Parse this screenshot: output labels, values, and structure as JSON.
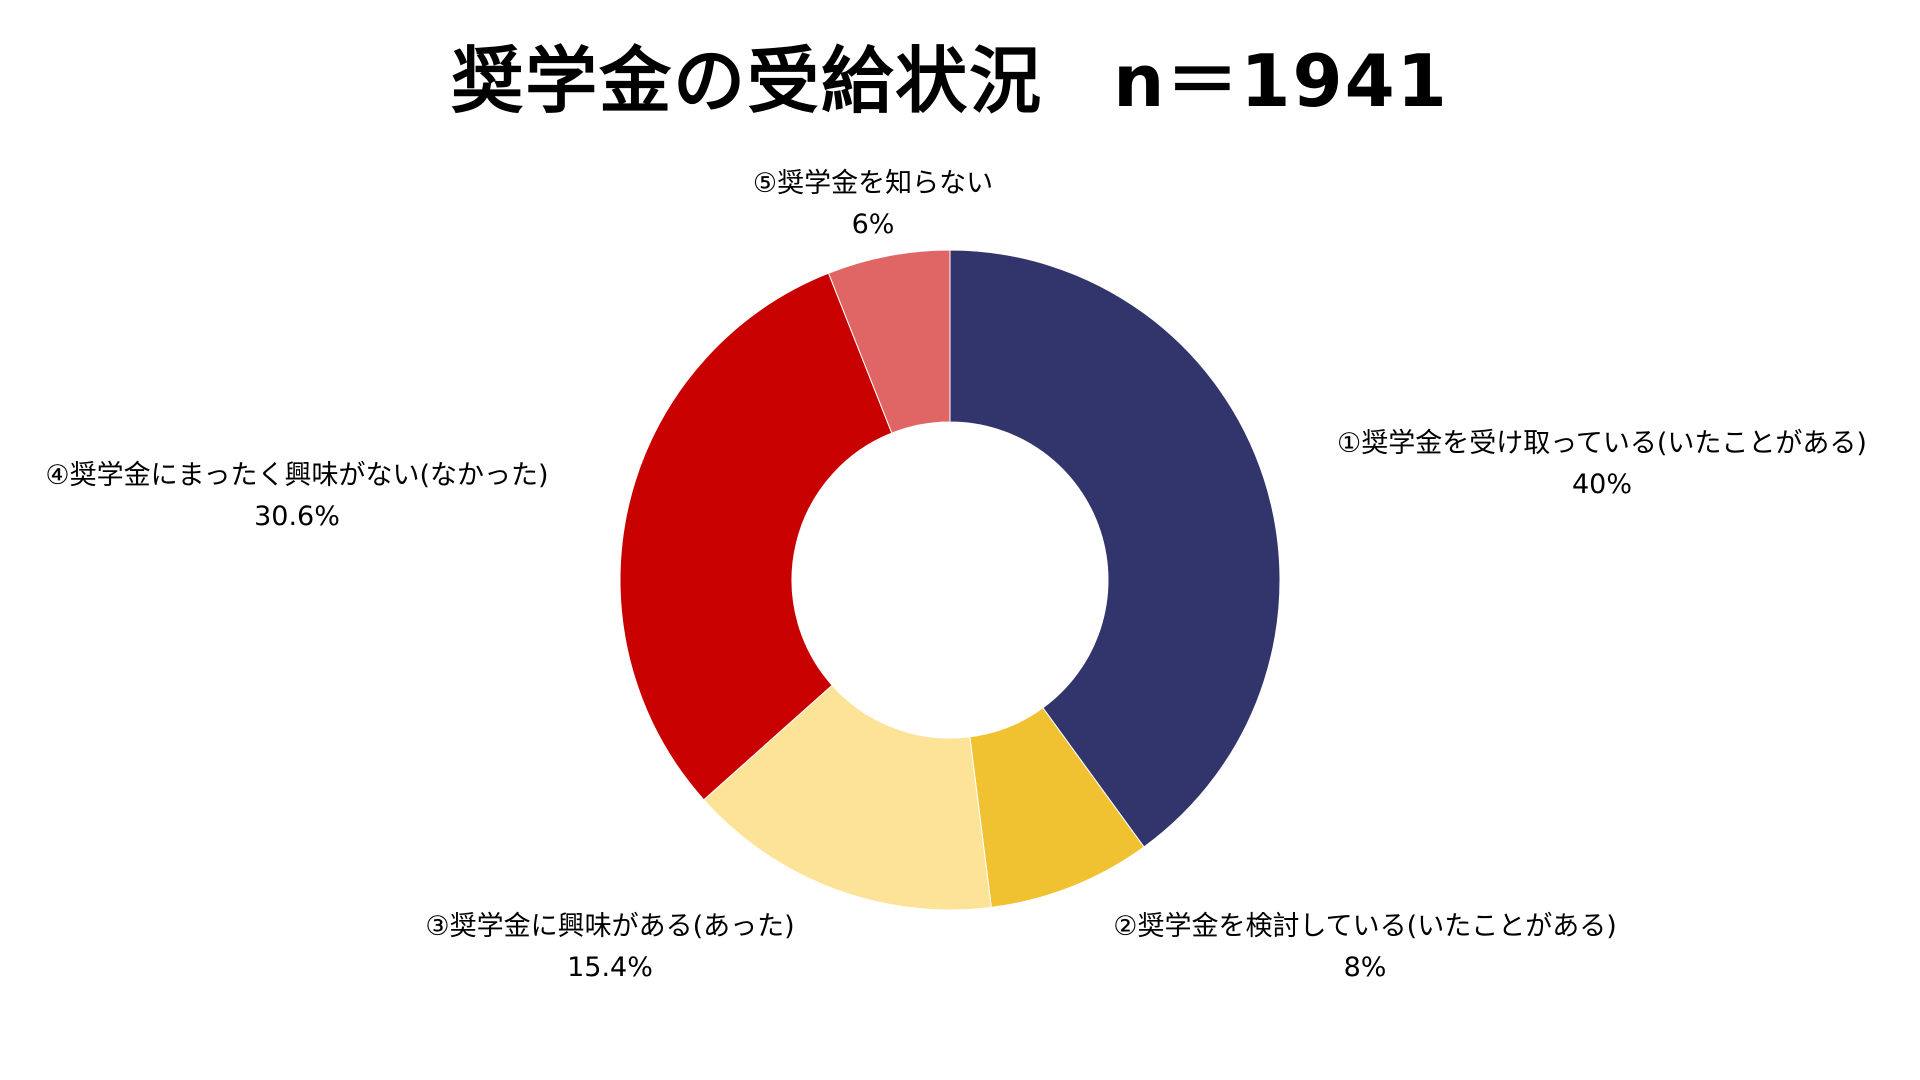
{
  "chart_data": {
    "type": "pie",
    "donut": true,
    "title": "奨学金の受給状況",
    "subtitle": "n＝1941",
    "categories": [
      "①奨学金を受け取っている(いたことがある)",
      "②奨学金を検討している(いたことがある)",
      "③奨学金に興味がある(あった)",
      "④奨学金にまったく興味がない(なかった)",
      "⑤奨学金を知らない"
    ],
    "values": [
      40,
      8,
      15.4,
      30.6,
      6
    ],
    "value_labels": [
      "40%",
      "8%",
      "15.4%",
      "30.6%",
      "6%"
    ],
    "colors": [
      "#32346c",
      "#f0c232",
      "#fde398",
      "#c80000",
      "#e06666"
    ],
    "start": "12 o'clock",
    "direction": "clockwise",
    "legend": "none"
  }
}
